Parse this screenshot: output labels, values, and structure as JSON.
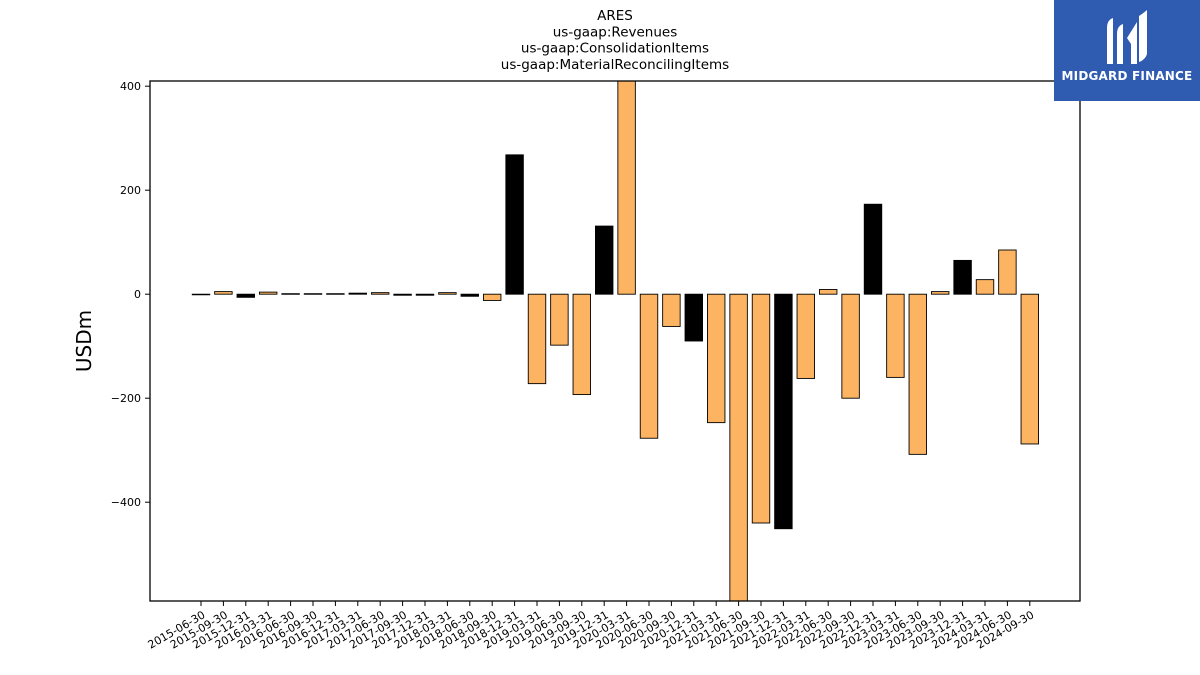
{
  "chart_data": {
    "type": "bar",
    "title_lines": [
      "ARES",
      "us-gaap:Revenues",
      "us-gaap:ConsolidationItems",
      "us-gaap:MaterialReconcilingItems"
    ],
    "ylabel": "USDm",
    "ylim": [
      -590,
      410
    ],
    "yticks": [
      400,
      200,
      0,
      -200,
      -400
    ],
    "ytick_labels": [
      "400",
      "200",
      "0",
      "−200",
      "−400"
    ],
    "categories": [
      "2015-06-30",
      "2015-09-30",
      "2015-12-31",
      "2016-03-31",
      "2016-06-30",
      "2016-09-30",
      "2016-12-31",
      "2017-03-31",
      "2017-06-30",
      "2017-09-30",
      "2017-12-31",
      "2018-03-31",
      "2018-06-30",
      "2018-09-30",
      "2018-12-31",
      "2019-03-31",
      "2019-06-30",
      "2019-09-30",
      "2019-12-31",
      "2020-03-31",
      "2020-06-30",
      "2020-09-30",
      "2020-12-31",
      "2021-03-31",
      "2021-06-30",
      "2021-09-30",
      "2021-12-31",
      "2022-03-31",
      "2022-06-30",
      "2022-09-30",
      "2022-12-31",
      "2023-03-31",
      "2023-06-30",
      "2023-09-30",
      "2023-12-31",
      "2024-03-31",
      "2024-06-30",
      "2024-09-30"
    ],
    "values": [
      -1,
      5,
      -6,
      4,
      1,
      1,
      1,
      2,
      3,
      -2,
      -2,
      3,
      -4,
      -12,
      268,
      -172,
      -98,
      -193,
      131,
      420,
      -277,
      -62,
      -90,
      -247,
      -600,
      -440,
      -451,
      -162,
      9,
      -200,
      173,
      -160,
      -308,
      5,
      65,
      28,
      85,
      -288
    ],
    "colors": [
      "#000000",
      "#fdb462",
      "#000000",
      "#fdb462",
      "#000000",
      "#000000",
      "#000000",
      "#000000",
      "#fdb462",
      "#000000",
      "#000000",
      "#fdb462",
      "#000000",
      "#fdb462",
      "#000000",
      "#fdb462",
      "#fdb462",
      "#fdb462",
      "#000000",
      "#fdb462",
      "#fdb462",
      "#fdb462",
      "#000000",
      "#fdb462",
      "#fdb462",
      "#fdb462",
      "#000000",
      "#fdb462",
      "#fdb462",
      "#fdb462",
      "#000000",
      "#fdb462",
      "#fdb462",
      "#fdb462",
      "#000000",
      "#fdb462",
      "#fdb462",
      "#fdb462"
    ],
    "grid": false
  },
  "logo": {
    "text": "MIDGARD FINANCE",
    "background": "#2f5bb0"
  }
}
